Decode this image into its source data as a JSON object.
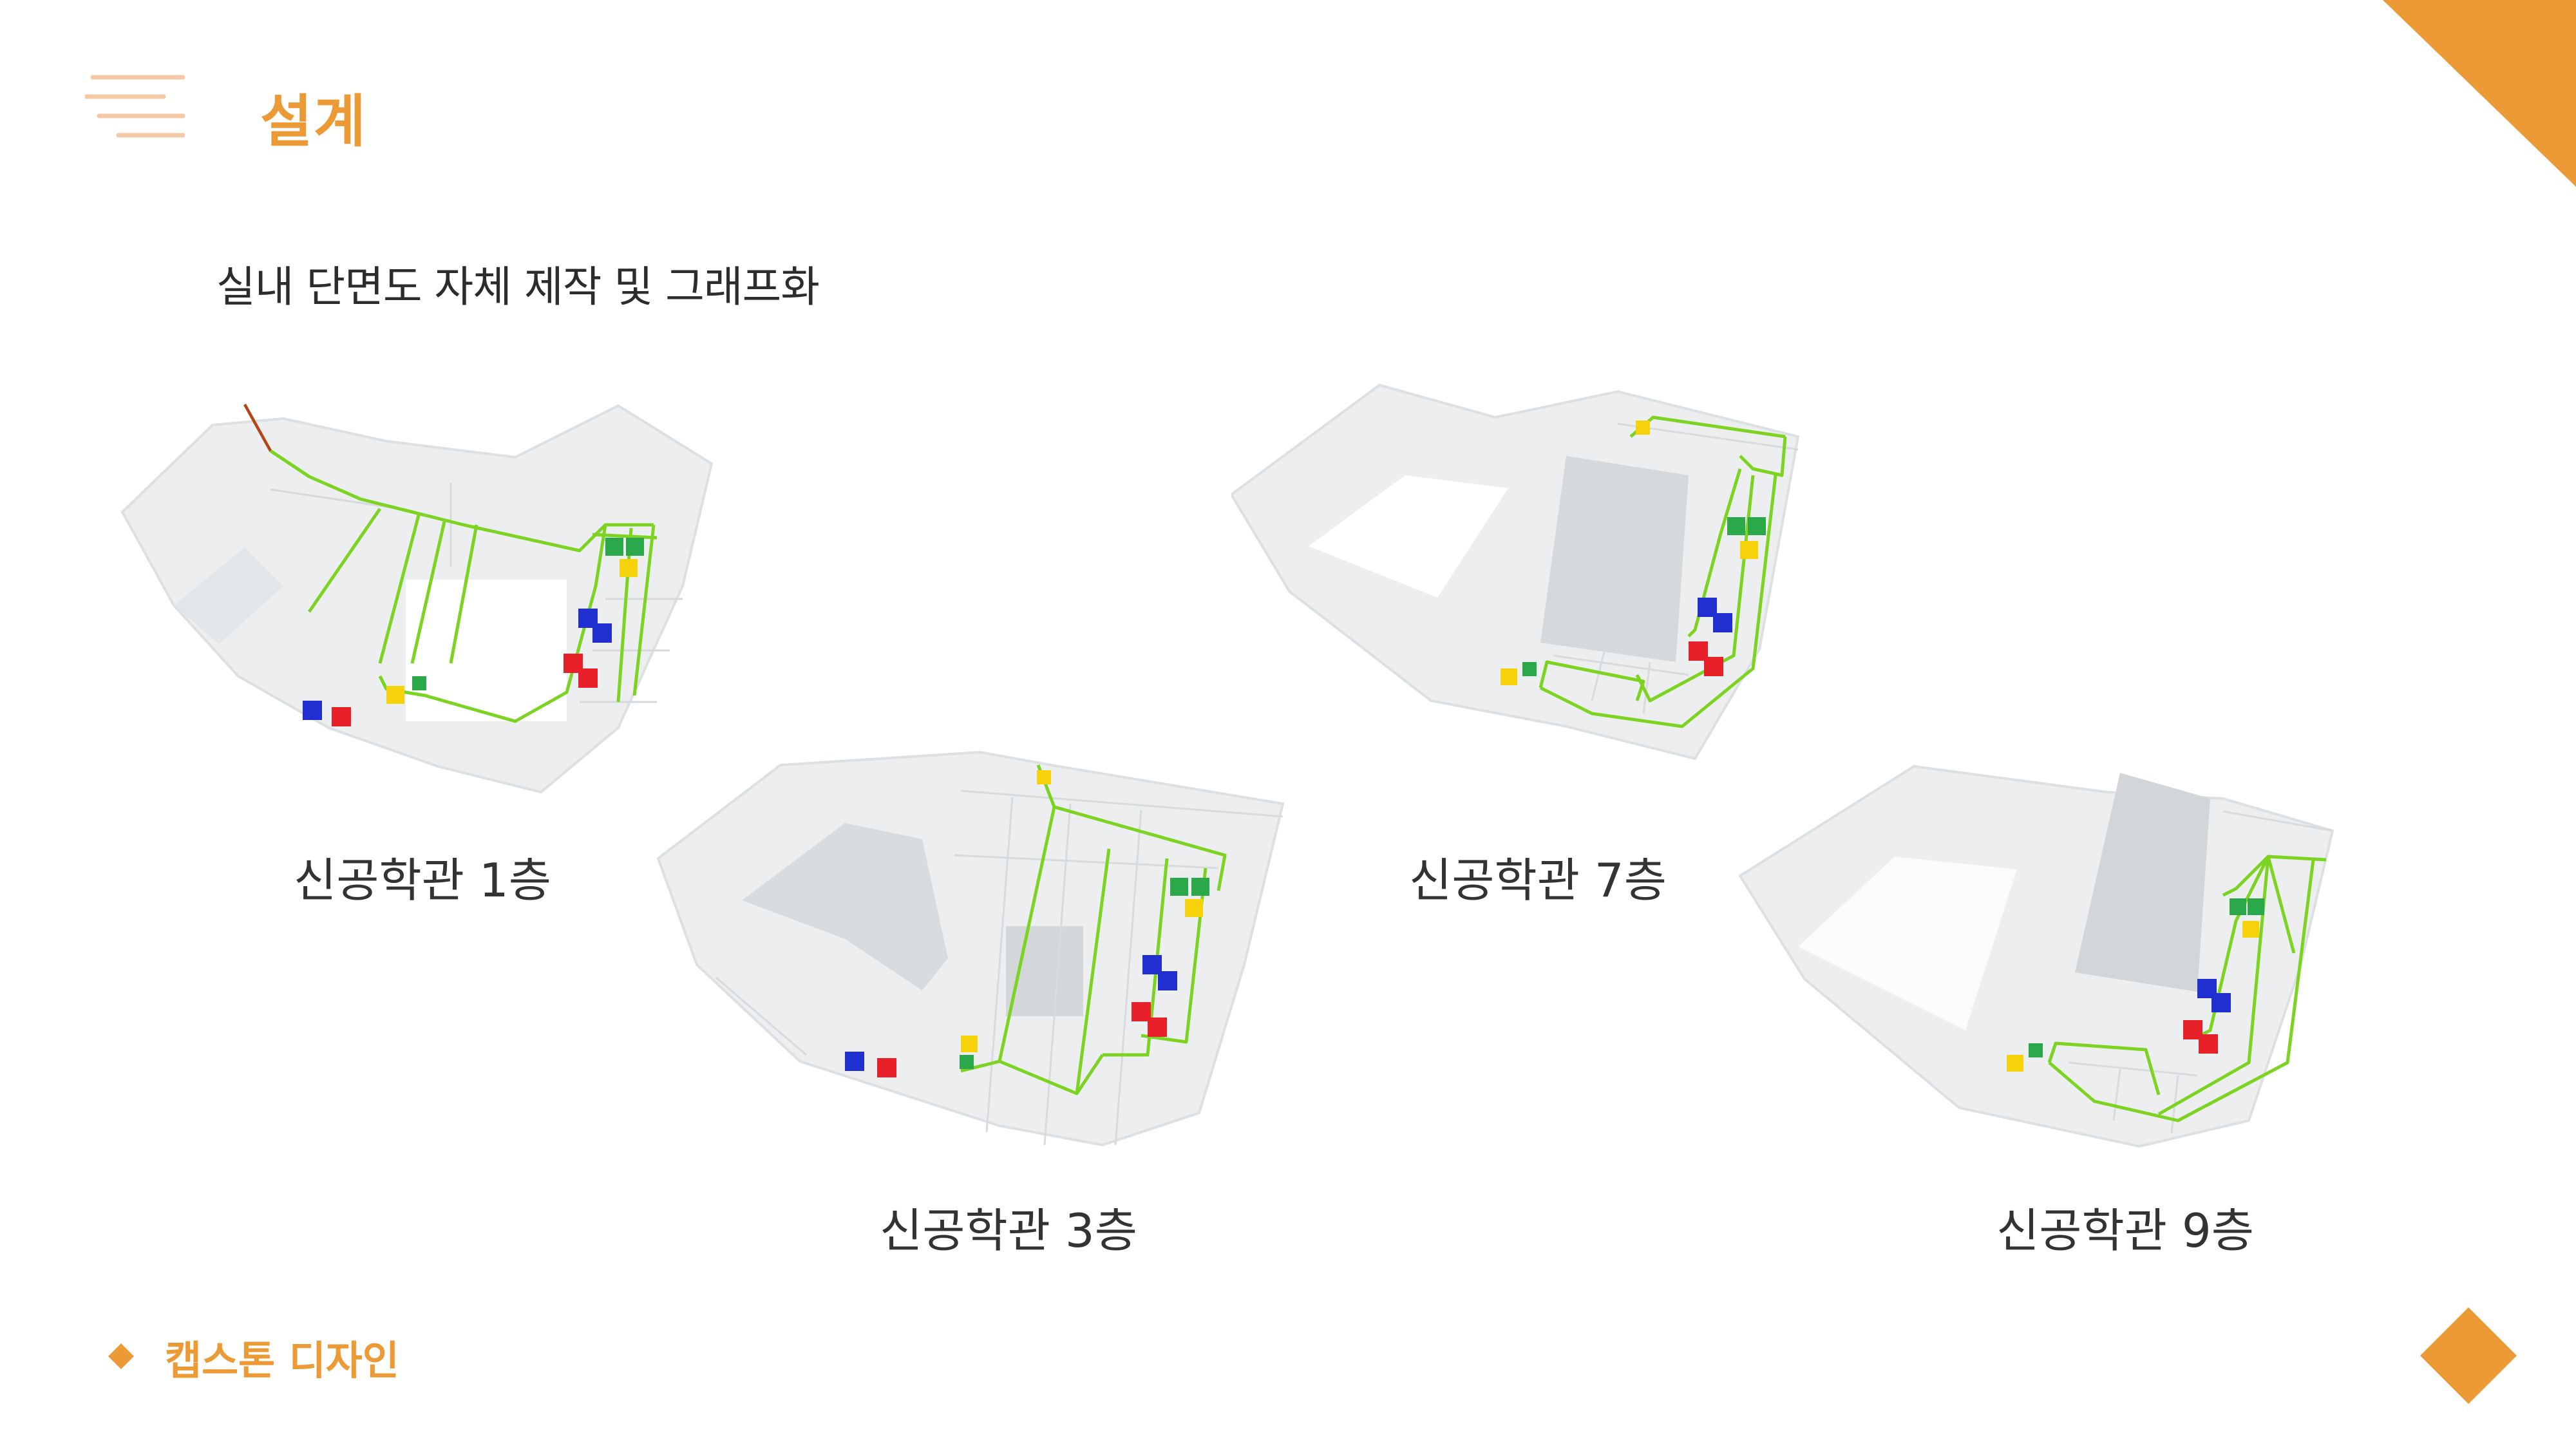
{
  "slide": {
    "title": "설계",
    "subtitle": "실내 단면도 자체 제작 및 그래프화"
  },
  "floors": [
    {
      "label": "신공학관 1층"
    },
    {
      "label": "신공학관 3층"
    },
    {
      "label": "신공학관 7층"
    },
    {
      "label": "신공학관 9층"
    }
  ],
  "footer": {
    "text": "캡스톤 디자인"
  },
  "colors": {
    "accent": "#ec9a35",
    "path": "#7dd321",
    "floor_fill": "#eceef0",
    "men_restroom": "#1f2fd0",
    "women_restroom": "#e8202a",
    "exit": "#2ba84a",
    "stairs": "#f5d20a"
  },
  "icons": [
    "menu-lines-icon",
    "diamond-bullet-icon",
    "men-restroom-icon",
    "women-restroom-icon",
    "emergency-exit-icon",
    "stairs-icon"
  ]
}
